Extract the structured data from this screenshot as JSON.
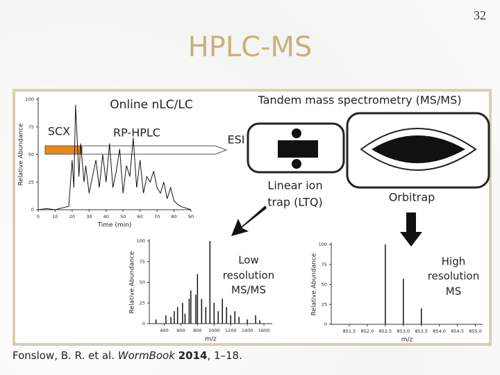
{
  "slide_number": "32",
  "title": "HPLC-MS",
  "figure": {
    "lc_title": "Online nLC/LC",
    "ms_title": "Tandem mass spectrometry (MS/MS)",
    "scx": "SCX",
    "rp_hplc": "RP-HPLC",
    "esi": "ESI",
    "ion_trap": [
      "Linear ion",
      "trap (LTQ)"
    ],
    "orbitrap": "Orbitrap",
    "low_res": [
      "Low",
      "resolution",
      "MS/MS"
    ],
    "high_res": [
      "High",
      "resolution",
      "MS"
    ]
  },
  "chart_data": [
    {
      "type": "line",
      "y_label": "Relative Abundance",
      "x_label": "Time (min)",
      "color": "#111111",
      "xlim": [
        0,
        90
      ],
      "ylim": [
        0,
        100
      ],
      "xticks": [
        0,
        10,
        20,
        30,
        40,
        50,
        60,
        70,
        80,
        90
      ],
      "yticks": [
        0,
        25,
        50,
        75,
        100
      ],
      "x": [
        0,
        5,
        10,
        15,
        18,
        20,
        21,
        22,
        24,
        25,
        27,
        28,
        30,
        32,
        34,
        36,
        38,
        40,
        42,
        44,
        46,
        48,
        50,
        52,
        54,
        56,
        58,
        60,
        62,
        64,
        66,
        68,
        70,
        72,
        74,
        76,
        78,
        80,
        82,
        84,
        86,
        88,
        90
      ],
      "values": [
        0,
        1,
        0,
        2,
        3,
        45,
        20,
        95,
        30,
        60,
        25,
        40,
        15,
        30,
        45,
        20,
        50,
        25,
        60,
        20,
        35,
        55,
        15,
        40,
        30,
        65,
        20,
        45,
        15,
        30,
        25,
        35,
        20,
        15,
        25,
        10,
        20,
        8,
        5,
        3,
        2,
        1,
        0
      ]
    },
    {
      "type": "bar",
      "y_label": "Relative Abundance",
      "x_label": "m/z",
      "color": "#111111",
      "xlim": [
        220,
        1700
      ],
      "ylim": [
        0,
        100
      ],
      "xticks": [
        400,
        600,
        800,
        1000,
        1200,
        1400,
        1600
      ],
      "yticks": [
        0,
        25,
        50,
        75,
        100
      ],
      "x": [
        300,
        420,
        480,
        520,
        560,
        620,
        650,
        700,
        720,
        780,
        800,
        850,
        900,
        950,
        1000,
        1050,
        1100,
        1150,
        1200,
        1250,
        1300,
        1400,
        1500,
        1550
      ],
      "values": [
        5,
        10,
        8,
        15,
        20,
        25,
        12,
        30,
        40,
        35,
        60,
        30,
        20,
        100,
        25,
        15,
        30,
        20,
        10,
        15,
        8,
        5,
        10,
        4
      ]
    },
    {
      "type": "bar",
      "y_label": "Relative Abundance",
      "x_label": "m/z",
      "color": "#111111",
      "xlim": [
        851.0,
        855.2
      ],
      "ylim": [
        0,
        100
      ],
      "xticks": [
        851.5,
        {
          "value": 852,
          "label": "852.0"
        },
        852.5,
        {
          "value": 853,
          "label": "853.0"
        },
        853.5,
        {
          "value": 854,
          "label": "854.0"
        },
        854.5,
        {
          "value": 855,
          "label": "855.0"
        }
      ],
      "yticks": [
        0,
        25,
        50,
        75,
        100
      ],
      "x": [
        852.5,
        853.0,
        853.5
      ],
      "values": [
        100,
        57,
        20
      ]
    }
  ],
  "citation": {
    "authors": "Fonslow, B. R. et al.",
    "journal": "WormBook",
    "year": "2014",
    "pages": ", 1–18."
  }
}
